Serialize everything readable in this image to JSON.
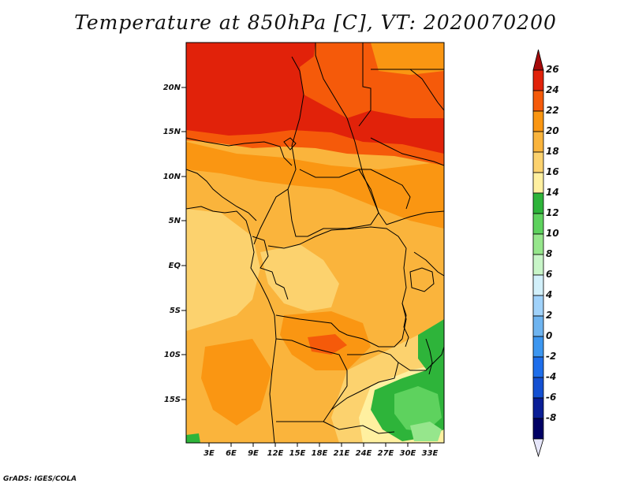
{
  "title": "Temperature at 850hPa [C], VT: 2020070200",
  "credit": "GrADS: IGES/COLA",
  "map": {
    "lat_labels": [
      "20N",
      "15N",
      "10N",
      "5N",
      "EQ",
      "5S",
      "10S",
      "15S"
    ],
    "lon_labels": [
      "3E",
      "6E",
      "9E",
      "12E",
      "15E",
      "18E",
      "21E",
      "24E",
      "27E",
      "30E",
      "33E"
    ]
  },
  "colorbar": {
    "labels": [
      "26",
      "24",
      "22",
      "20",
      "18",
      "16",
      "14",
      "12",
      "10",
      "8",
      "6",
      "4",
      "2",
      "0",
      "-2",
      "-4",
      "-6",
      "-8"
    ],
    "colors": [
      "#a50a0a",
      "#e1220a",
      "#f55a0a",
      "#fa9612",
      "#fab43c",
      "#fcd26e",
      "#fff0a0",
      "#2eb43a",
      "#5ed25e",
      "#96e68c",
      "#c8f5c8",
      "#d2f0fa",
      "#a0d2fa",
      "#6eb4f0",
      "#3c96f0",
      "#1e6eeb",
      "#1450d2",
      "#0a1e96",
      "#000064",
      "#e6e6fa"
    ]
  }
}
